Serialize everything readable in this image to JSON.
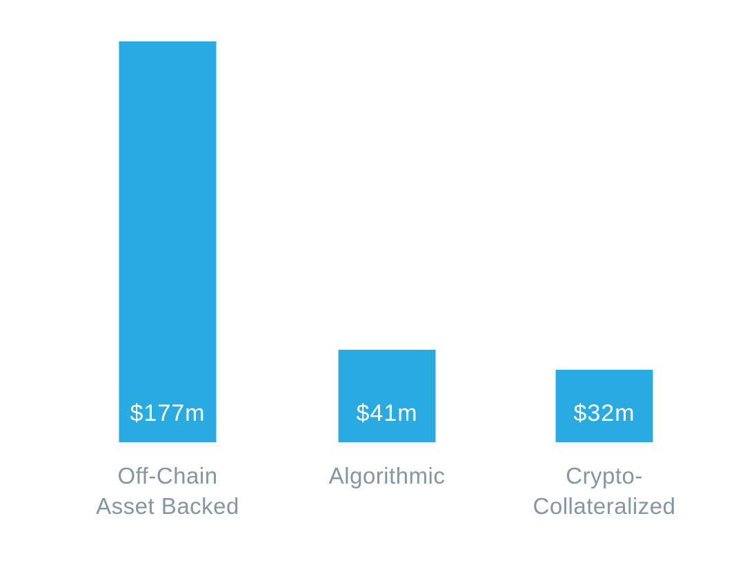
{
  "chart_data": {
    "type": "bar",
    "title": "",
    "categories": [
      "Off-Chain Asset Backed",
      "Algorithmic",
      "Crypto-Collateralized"
    ],
    "values": [
      177,
      41,
      32
    ],
    "value_labels": [
      "$177m",
      "$41m",
      "$32m"
    ],
    "label_lines": [
      [
        "Off-Chain",
        "Asset Backed"
      ],
      [
        "Algorithmic"
      ],
      [
        "Crypto-",
        "Collateralized"
      ]
    ],
    "unit": "$m",
    "xlabel": "",
    "ylabel": "",
    "axes_visible": false,
    "grid": false,
    "legend": false,
    "value_label_position": "inside-bottom",
    "bar_color": "#29ABE2",
    "value_text_color": "#FFFFFF",
    "category_label_color": "#8496A4",
    "background_color": "#FFFFFF"
  }
}
